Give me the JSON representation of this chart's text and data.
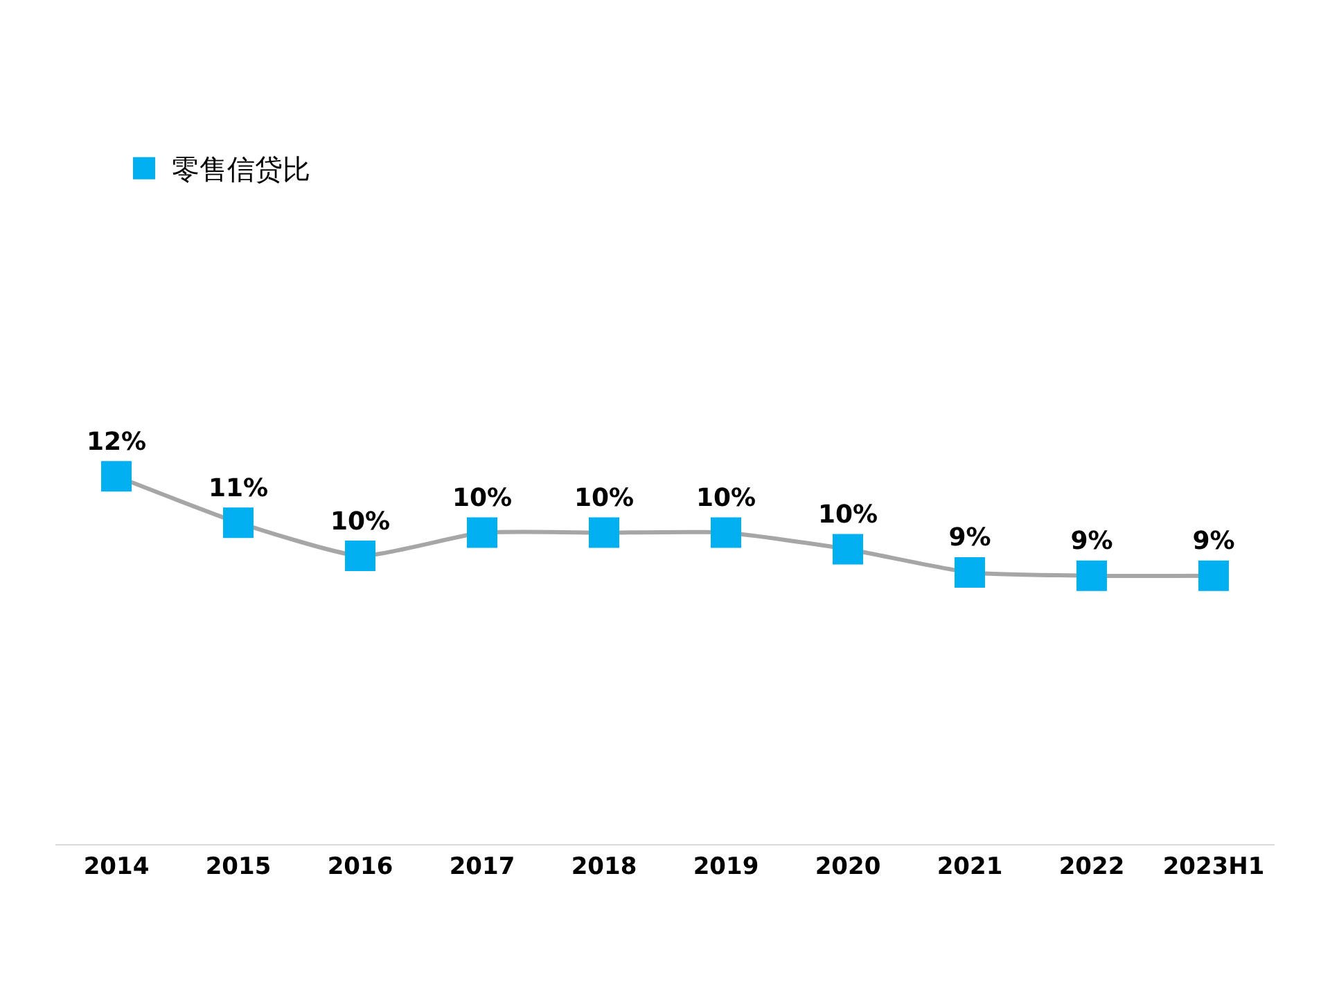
{
  "chart_data": {
    "type": "line",
    "categories": [
      "2014",
      "2015",
      "2016",
      "2017",
      "2018",
      "2019",
      "2020",
      "2021",
      "2022",
      "2023H1"
    ],
    "series": [
      {
        "name": "零售信贷比",
        "color": "#00b0f0",
        "values": [
          12.0,
          10.6,
          9.6,
          10.3,
          10.3,
          10.3,
          9.8,
          9.1,
          9.0,
          9.0
        ],
        "value_labels": [
          "12%",
          "11%",
          "10%",
          "10%",
          "10%",
          "10%",
          "10%",
          "9%",
          "9%",
          "9%"
        ]
      }
    ],
    "marker": "square",
    "line_style": "solid",
    "legend": "top left",
    "tick_labels": "x"
  }
}
